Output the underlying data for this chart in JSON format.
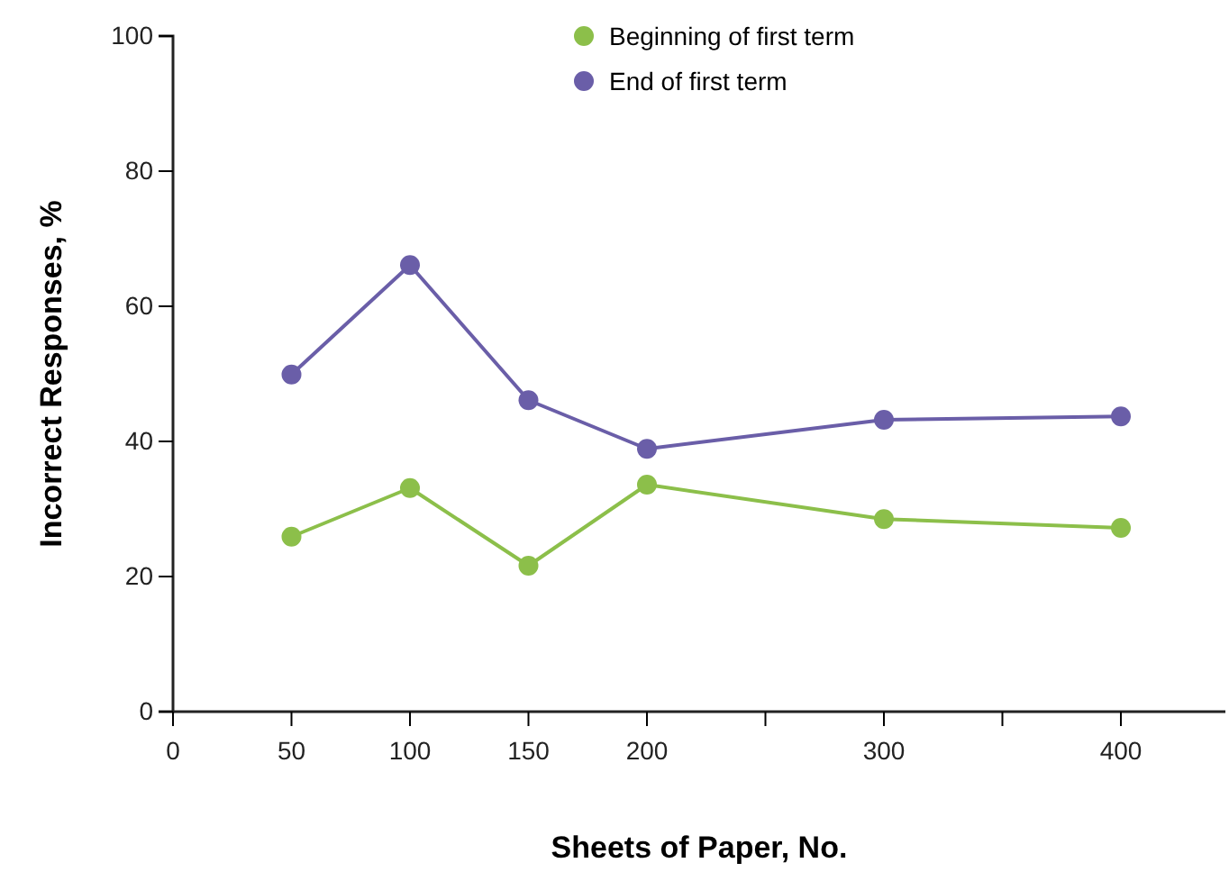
{
  "chart_data": {
    "type": "line",
    "xlabel": "Sheets of Paper, No.",
    "ylabel": "Incorrect Responses, %",
    "categories": [
      "0",
      "50",
      "100",
      "150",
      "200",
      null,
      "300",
      null,
      "400"
    ],
    "ylim": [
      0,
      100
    ],
    "yticks": [
      0,
      20,
      40,
      60,
      80,
      100
    ],
    "grid": false,
    "legend": "top",
    "marker": "circle",
    "line_style": "solid",
    "series": [
      {
        "name": "Beginning of first term",
        "color": "#8cbf4a",
        "values": [
          null,
          25.9,
          33.1,
          21.6,
          33.6,
          null,
          28.5,
          null,
          27.2
        ]
      },
      {
        "name": "End of first term",
        "color": "#6a5ea8",
        "values": [
          null,
          49.9,
          66.1,
          46.1,
          38.9,
          null,
          43.2,
          null,
          43.7
        ]
      }
    ]
  }
}
